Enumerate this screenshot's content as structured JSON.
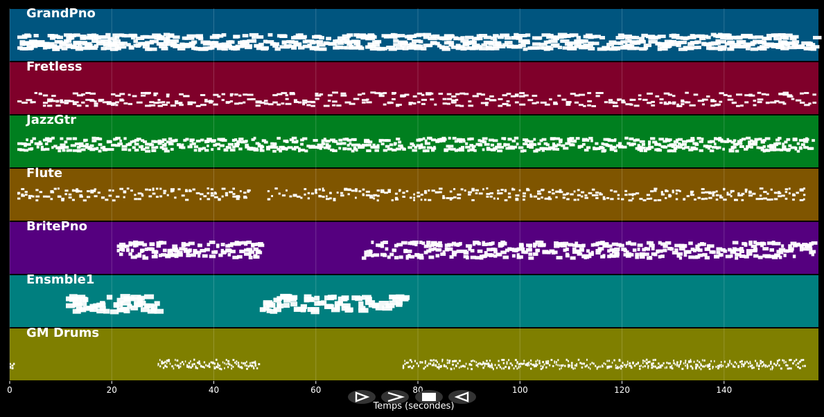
{
  "xaxis": {
    "label": "Temps (secondes)",
    "ticks": [
      "0",
      "20",
      "40",
      "60",
      "80",
      "100",
      "120",
      "140"
    ],
    "tick_values": [
      0,
      20,
      40,
      60,
      80,
      100,
      120,
      140
    ],
    "range": [
      0,
      158.5
    ]
  },
  "colors": {
    "background": "#000000",
    "grid": "#ffffff",
    "notes": "#ffffff",
    "button": "#333333"
  },
  "tracks": [
    {
      "name": "GrandPno",
      "color": "#00557f",
      "segments": [
        [
          1.5,
          157.5
        ]
      ],
      "density": 2.2,
      "band": [
        0.5,
        0.62,
        0.7
      ],
      "noteWidth": 1.4,
      "noteHeight": 5
    },
    {
      "name": "Fretless",
      "color": "#7f002a",
      "segments": [
        [
          1.5,
          157.5
        ]
      ],
      "density": 1.2,
      "band": [
        0.6,
        0.72,
        0.78
      ],
      "noteWidth": 0.9,
      "noteHeight": 3
    },
    {
      "name": "JazzGtr",
      "color": "#007f1f",
      "segments": [
        [
          1.5,
          77
        ],
        [
          78,
          157.5
        ]
      ],
      "density": 2.4,
      "band": [
        0.45,
        0.55,
        0.62
      ],
      "noteWidth": 0.8,
      "noteHeight": 4
    },
    {
      "name": "Flute",
      "color": "#7f5500",
      "segments": [
        [
          1.5,
          47
        ],
        [
          50.5,
          156
        ]
      ],
      "density": 1.4,
      "band": [
        0.4,
        0.48,
        0.55
      ],
      "noteWidth": 0.6,
      "noteHeight": 3
    },
    {
      "name": "BritePno",
      "color": "#55007f",
      "segments": [
        [
          21,
          30
        ],
        [
          30,
          49
        ],
        [
          69,
          78
        ],
        [
          78,
          157.5
        ]
      ],
      "density": 2.2,
      "band": [
        0.4,
        0.52,
        0.62
      ],
      "noteWidth": 0.9,
      "noteHeight": 5
    },
    {
      "name": "Ensmble1",
      "color": "#007f7f",
      "segments": [
        [
          11,
          29
        ],
        [
          49,
          77
        ]
      ],
      "density": 1.5,
      "band": [
        0.4,
        0.52,
        0.62
      ],
      "noteWidth": 1.5,
      "noteHeight": 7
    },
    {
      "name": "GM Drums",
      "color": "#7f7f00",
      "segments": [
        [
          0,
          1
        ],
        [
          29,
          49
        ],
        [
          77,
          116
        ],
        [
          116,
          156
        ]
      ],
      "density": 3.0,
      "band": [
        0.62,
        0.68,
        0.72
      ],
      "noteWidth": 0.3,
      "noteHeight": 3
    }
  ],
  "controls": [
    {
      "name": "play-button",
      "glyph": "play-icon"
    },
    {
      "name": "forward-button",
      "glyph": "forward-icon"
    },
    {
      "name": "stop-button",
      "glyph": "stop-icon"
    },
    {
      "name": "back-button",
      "glyph": "back-icon"
    }
  ]
}
